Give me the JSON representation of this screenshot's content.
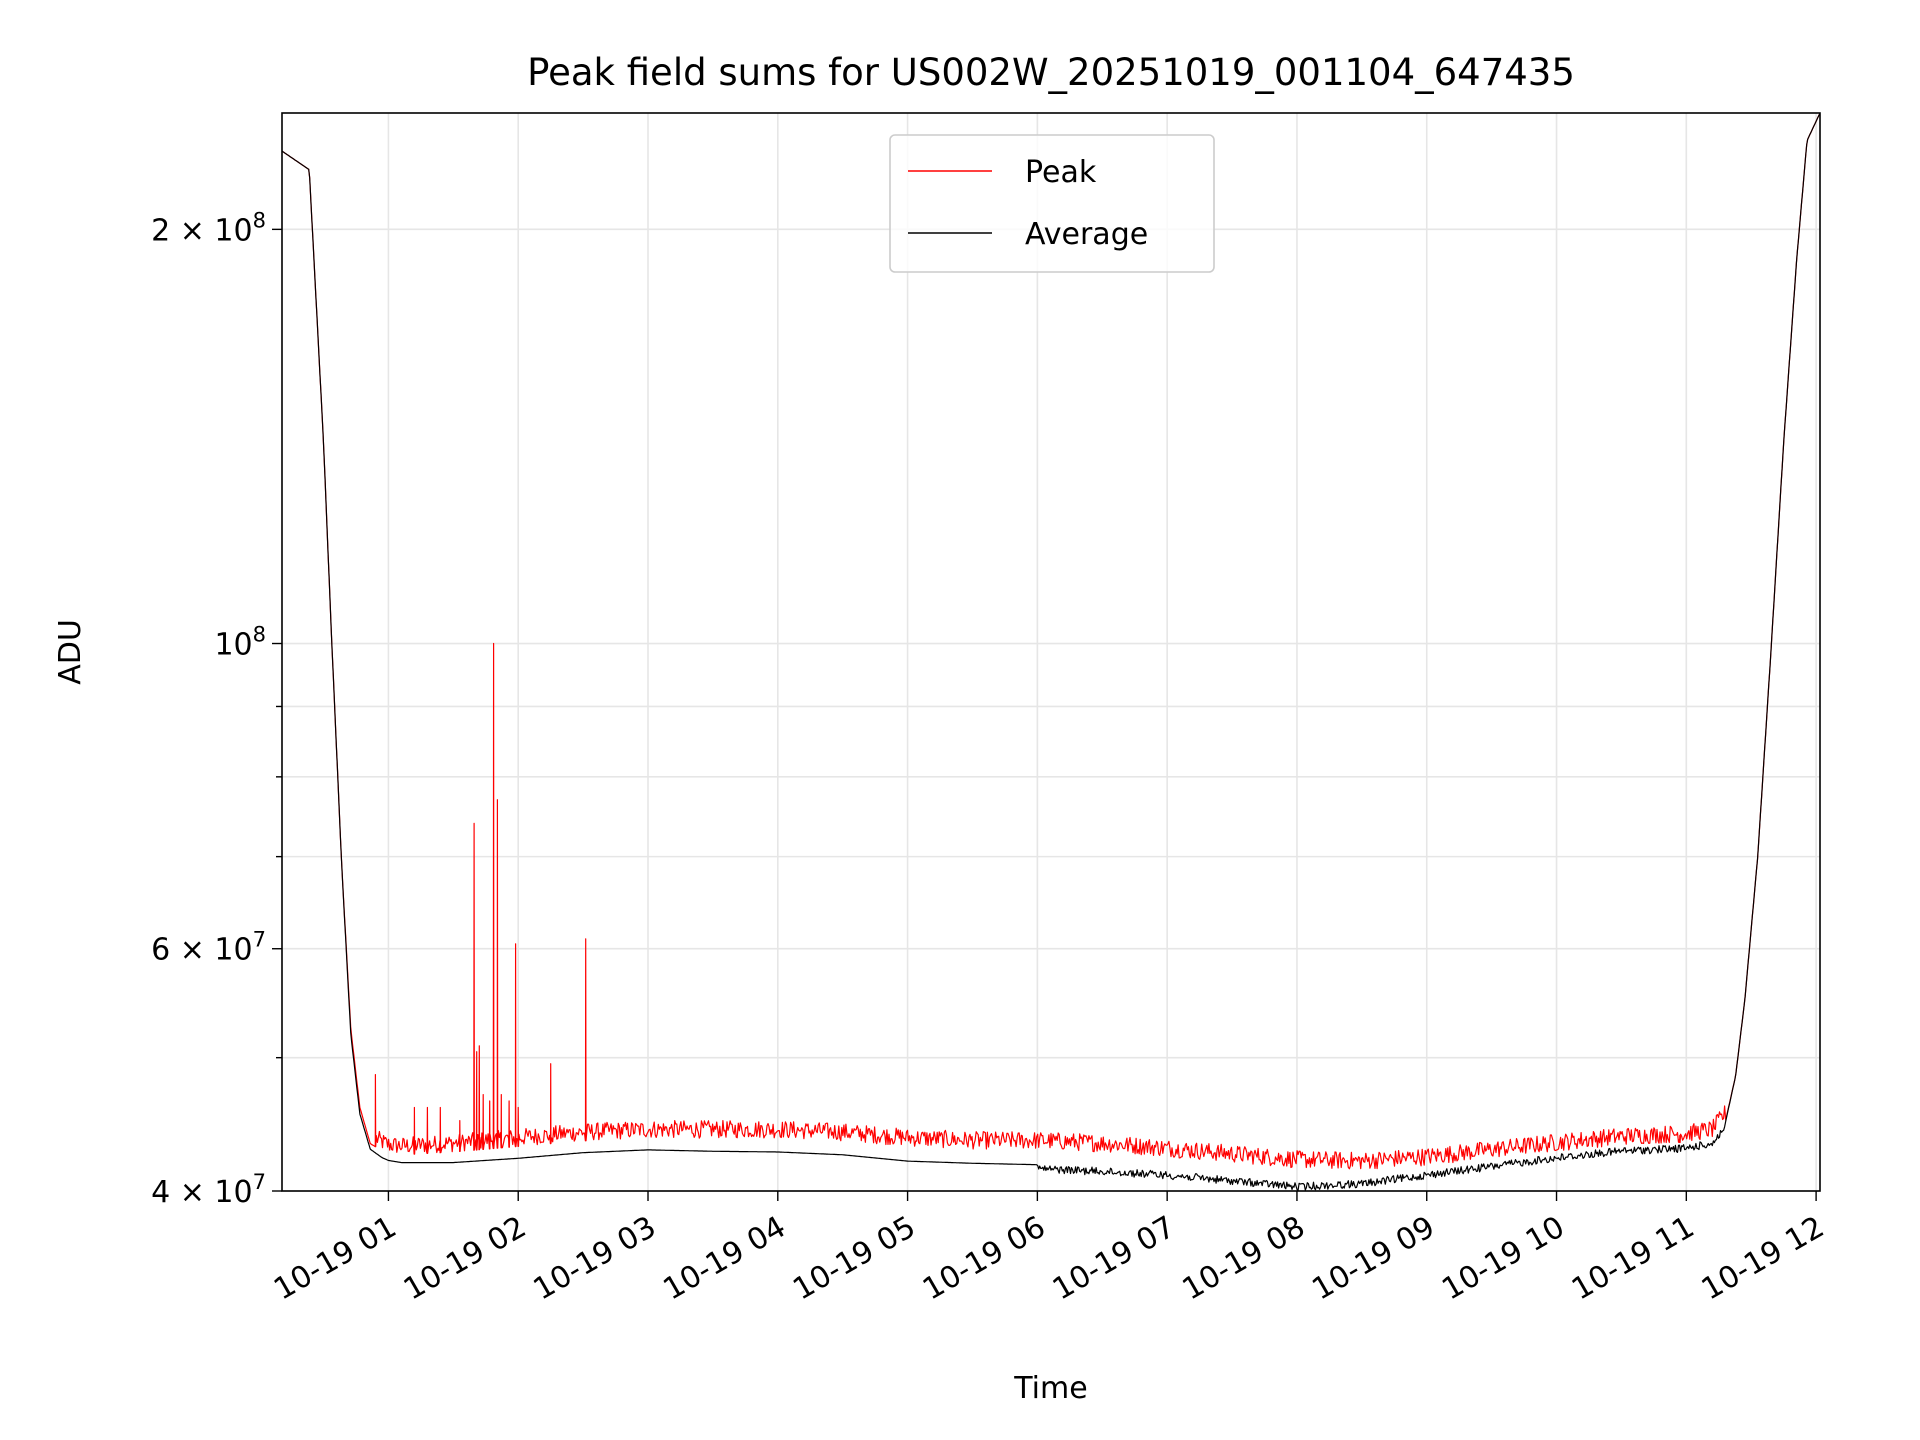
{
  "chart_data": {
    "type": "line",
    "title": "Peak field sums for US002W_20251019_001104_647435",
    "xlabel": "Time",
    "ylabel": "ADU",
    "yscale": "log",
    "ylim": [
      40000000,
      243000000
    ],
    "xlim_hours": [
      0.18,
      12.03
    ],
    "grid": true,
    "legend_location": "upper center",
    "x_tick_values_hours": [
      1,
      2,
      3,
      4,
      5,
      6,
      7,
      8,
      9,
      10,
      11,
      12
    ],
    "x_tick_labels": [
      "10-19 01",
      "10-19 02",
      "10-19 03",
      "10-19 04",
      "10-19 05",
      "10-19 06",
      "10-19 07",
      "10-19 08",
      "10-19 09",
      "10-19 10",
      "10-19 11",
      "10-19 12"
    ],
    "y_major_ticks": [
      {
        "value": 40000000,
        "mantissa": "4",
        "exponent": "7"
      },
      {
        "value": 60000000,
        "mantissa": "6",
        "exponent": "7"
      },
      {
        "value": 100000000,
        "mantissa": "",
        "exponent": "8"
      },
      {
        "value": 200000000,
        "mantissa": "2",
        "exponent": "8"
      }
    ],
    "y_minor_ticks": [
      50000000,
      70000000,
      80000000,
      90000000
    ],
    "series": [
      {
        "name": "Average",
        "color": "#000000",
        "x_hours": [
          0.18,
          0.39,
          0.5,
          0.56,
          0.64,
          0.71,
          0.78,
          0.86,
          0.95,
          1.0,
          1.1,
          1.5,
          2.0,
          2.5,
          3.0,
          3.5,
          4.0,
          4.5,
          5.0,
          5.5,
          6.0,
          6.5,
          7.0,
          7.5,
          8.0,
          8.5,
          9.0,
          9.5,
          10.0,
          10.5,
          11.0,
          11.2,
          11.3,
          11.38,
          11.45,
          11.55,
          11.65,
          11.75,
          11.85,
          11.93,
          12.03
        ],
        "values": [
          228000000,
          221000000,
          140000000,
          102000000,
          69000000,
          52000000,
          45500000,
          42900000,
          42300000,
          42100000,
          41950000,
          41950000,
          42250000,
          42650000,
          42850000,
          42750000,
          42700000,
          42500000,
          42050000,
          41900000,
          41800000,
          41600000,
          41350000,
          40950000,
          40550000,
          40750000,
          41350000,
          41950000,
          42550000,
          43050000,
          43250000,
          43600000,
          44800000,
          48500000,
          55000000,
          70000000,
          98000000,
          140000000,
          190000000,
          232000000,
          243000000
        ],
        "noise_after_hours": 6.0,
        "noise_amplitude_fraction": 0.013
      },
      {
        "name": "Peak",
        "color": "#ff0000",
        "x_hours": [
          0.18,
          0.39,
          0.5,
          0.56,
          0.64,
          0.71,
          0.78,
          0.86,
          0.95,
          1.0,
          1.1,
          1.5,
          2.0,
          2.5,
          3.0,
          3.5,
          4.0,
          4.5,
          5.0,
          5.5,
          6.0,
          6.5,
          7.0,
          7.5,
          8.0,
          8.5,
          9.0,
          9.5,
          10.0,
          10.5,
          11.0,
          11.2,
          11.3,
          11.38,
          11.45,
          11.55,
          11.65,
          11.75,
          11.85,
          11.93,
          12.03
        ],
        "values": [
          228000000,
          221000000,
          140000000,
          102000000,
          69000000,
          52500000,
          46000000,
          43300000,
          42800000,
          42600000,
          42500000,
          42700000,
          43100000,
          43500000,
          43700000,
          43700000,
          43700000,
          43500000,
          43100000,
          42900000,
          42900000,
          42700000,
          42350000,
          41950000,
          41550000,
          41450000,
          41750000,
          42250000,
          42750000,
          43200000,
          43400000,
          43700000,
          44900000,
          48500000,
          55000000,
          70000000,
          98000000,
          140000000,
          190000000,
          232000000,
          243000000
        ],
        "noise_amplitude_fraction": 0.03,
        "spikes": [
          {
            "x_hours": 0.9,
            "value": 48600000
          },
          {
            "x_hours": 1.2,
            "value": 46000000
          },
          {
            "x_hours": 1.3,
            "value": 46000000
          },
          {
            "x_hours": 1.4,
            "value": 46000000
          },
          {
            "x_hours": 1.55,
            "value": 45000000
          },
          {
            "x_hours": 1.66,
            "value": 74000000
          },
          {
            "x_hours": 1.68,
            "value": 50500000
          },
          {
            "x_hours": 1.7,
            "value": 51000000
          },
          {
            "x_hours": 1.73,
            "value": 47000000
          },
          {
            "x_hours": 1.78,
            "value": 46500000
          },
          {
            "x_hours": 1.81,
            "value": 100000000
          },
          {
            "x_hours": 1.84,
            "value": 77000000
          },
          {
            "x_hours": 1.87,
            "value": 47000000
          },
          {
            "x_hours": 1.93,
            "value": 46500000
          },
          {
            "x_hours": 1.98,
            "value": 60500000
          },
          {
            "x_hours": 2.0,
            "value": 46000000
          },
          {
            "x_hours": 2.25,
            "value": 49500000
          },
          {
            "x_hours": 2.52,
            "value": 61000000
          },
          {
            "x_hours": 10.95,
            "value": 43900000
          }
        ]
      }
    ]
  }
}
